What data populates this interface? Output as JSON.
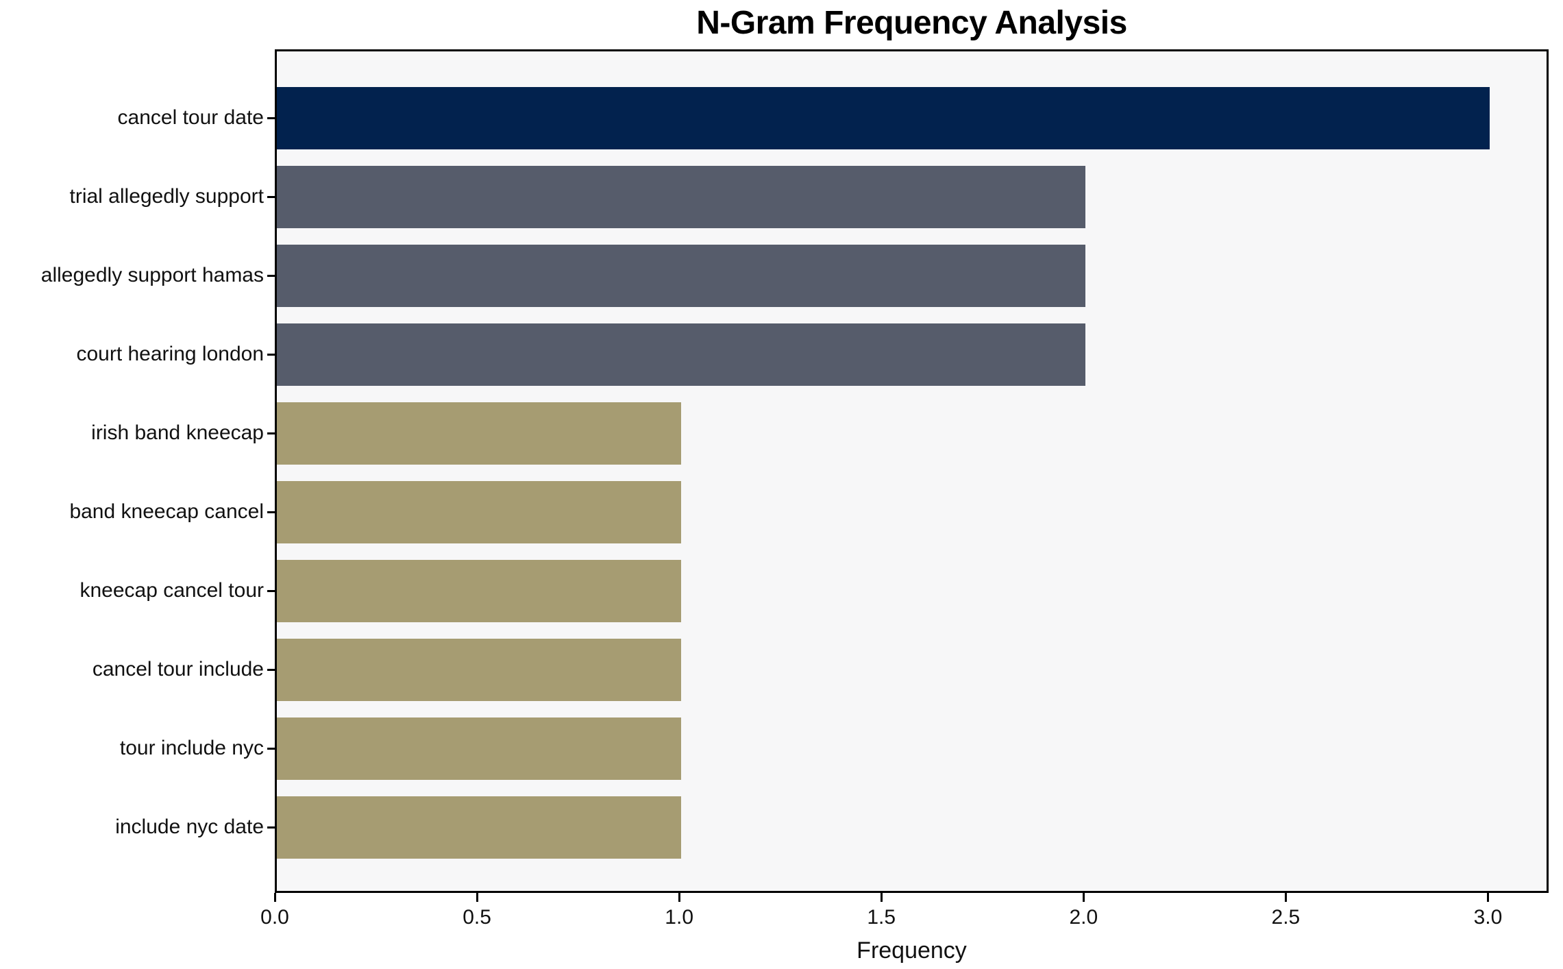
{
  "chart_data": {
    "type": "bar",
    "orientation": "horizontal",
    "title": "N-Gram Frequency Analysis",
    "xlabel": "Frequency",
    "ylabel": "",
    "categories": [
      "cancel tour date",
      "trial allegedly support",
      "allegedly support hamas",
      "court hearing london",
      "irish band kneecap",
      "band kneecap cancel",
      "kneecap cancel tour",
      "cancel tour include",
      "tour include nyc",
      "include nyc date"
    ],
    "values": [
      3,
      2,
      2,
      2,
      1,
      1,
      1,
      1,
      1,
      1
    ],
    "bar_colors": [
      "#02224e",
      "#565c6b",
      "#565c6b",
      "#565c6b",
      "#a69c72",
      "#a69c72",
      "#a69c72",
      "#a69c72",
      "#a69c72",
      "#a69c72"
    ],
    "xlim": [
      0,
      3.15
    ],
    "x_ticks": [
      {
        "value": 0.0,
        "label": "0.0"
      },
      {
        "value": 0.5,
        "label": "0.5"
      },
      {
        "value": 1.0,
        "label": "1.0"
      },
      {
        "value": 1.5,
        "label": "1.5"
      },
      {
        "value": 2.0,
        "label": "2.0"
      },
      {
        "value": 2.5,
        "label": "2.5"
      },
      {
        "value": 3.0,
        "label": "3.0"
      }
    ],
    "grid": false,
    "legend": null,
    "colors": {
      "rank_high": "#02224e",
      "rank_mid": "#565c6b",
      "rank_low": "#a69c72",
      "plot_background": "#f7f7f8",
      "figure_background": "#ffffff",
      "spine": "#000000",
      "text": "#111111"
    }
  }
}
